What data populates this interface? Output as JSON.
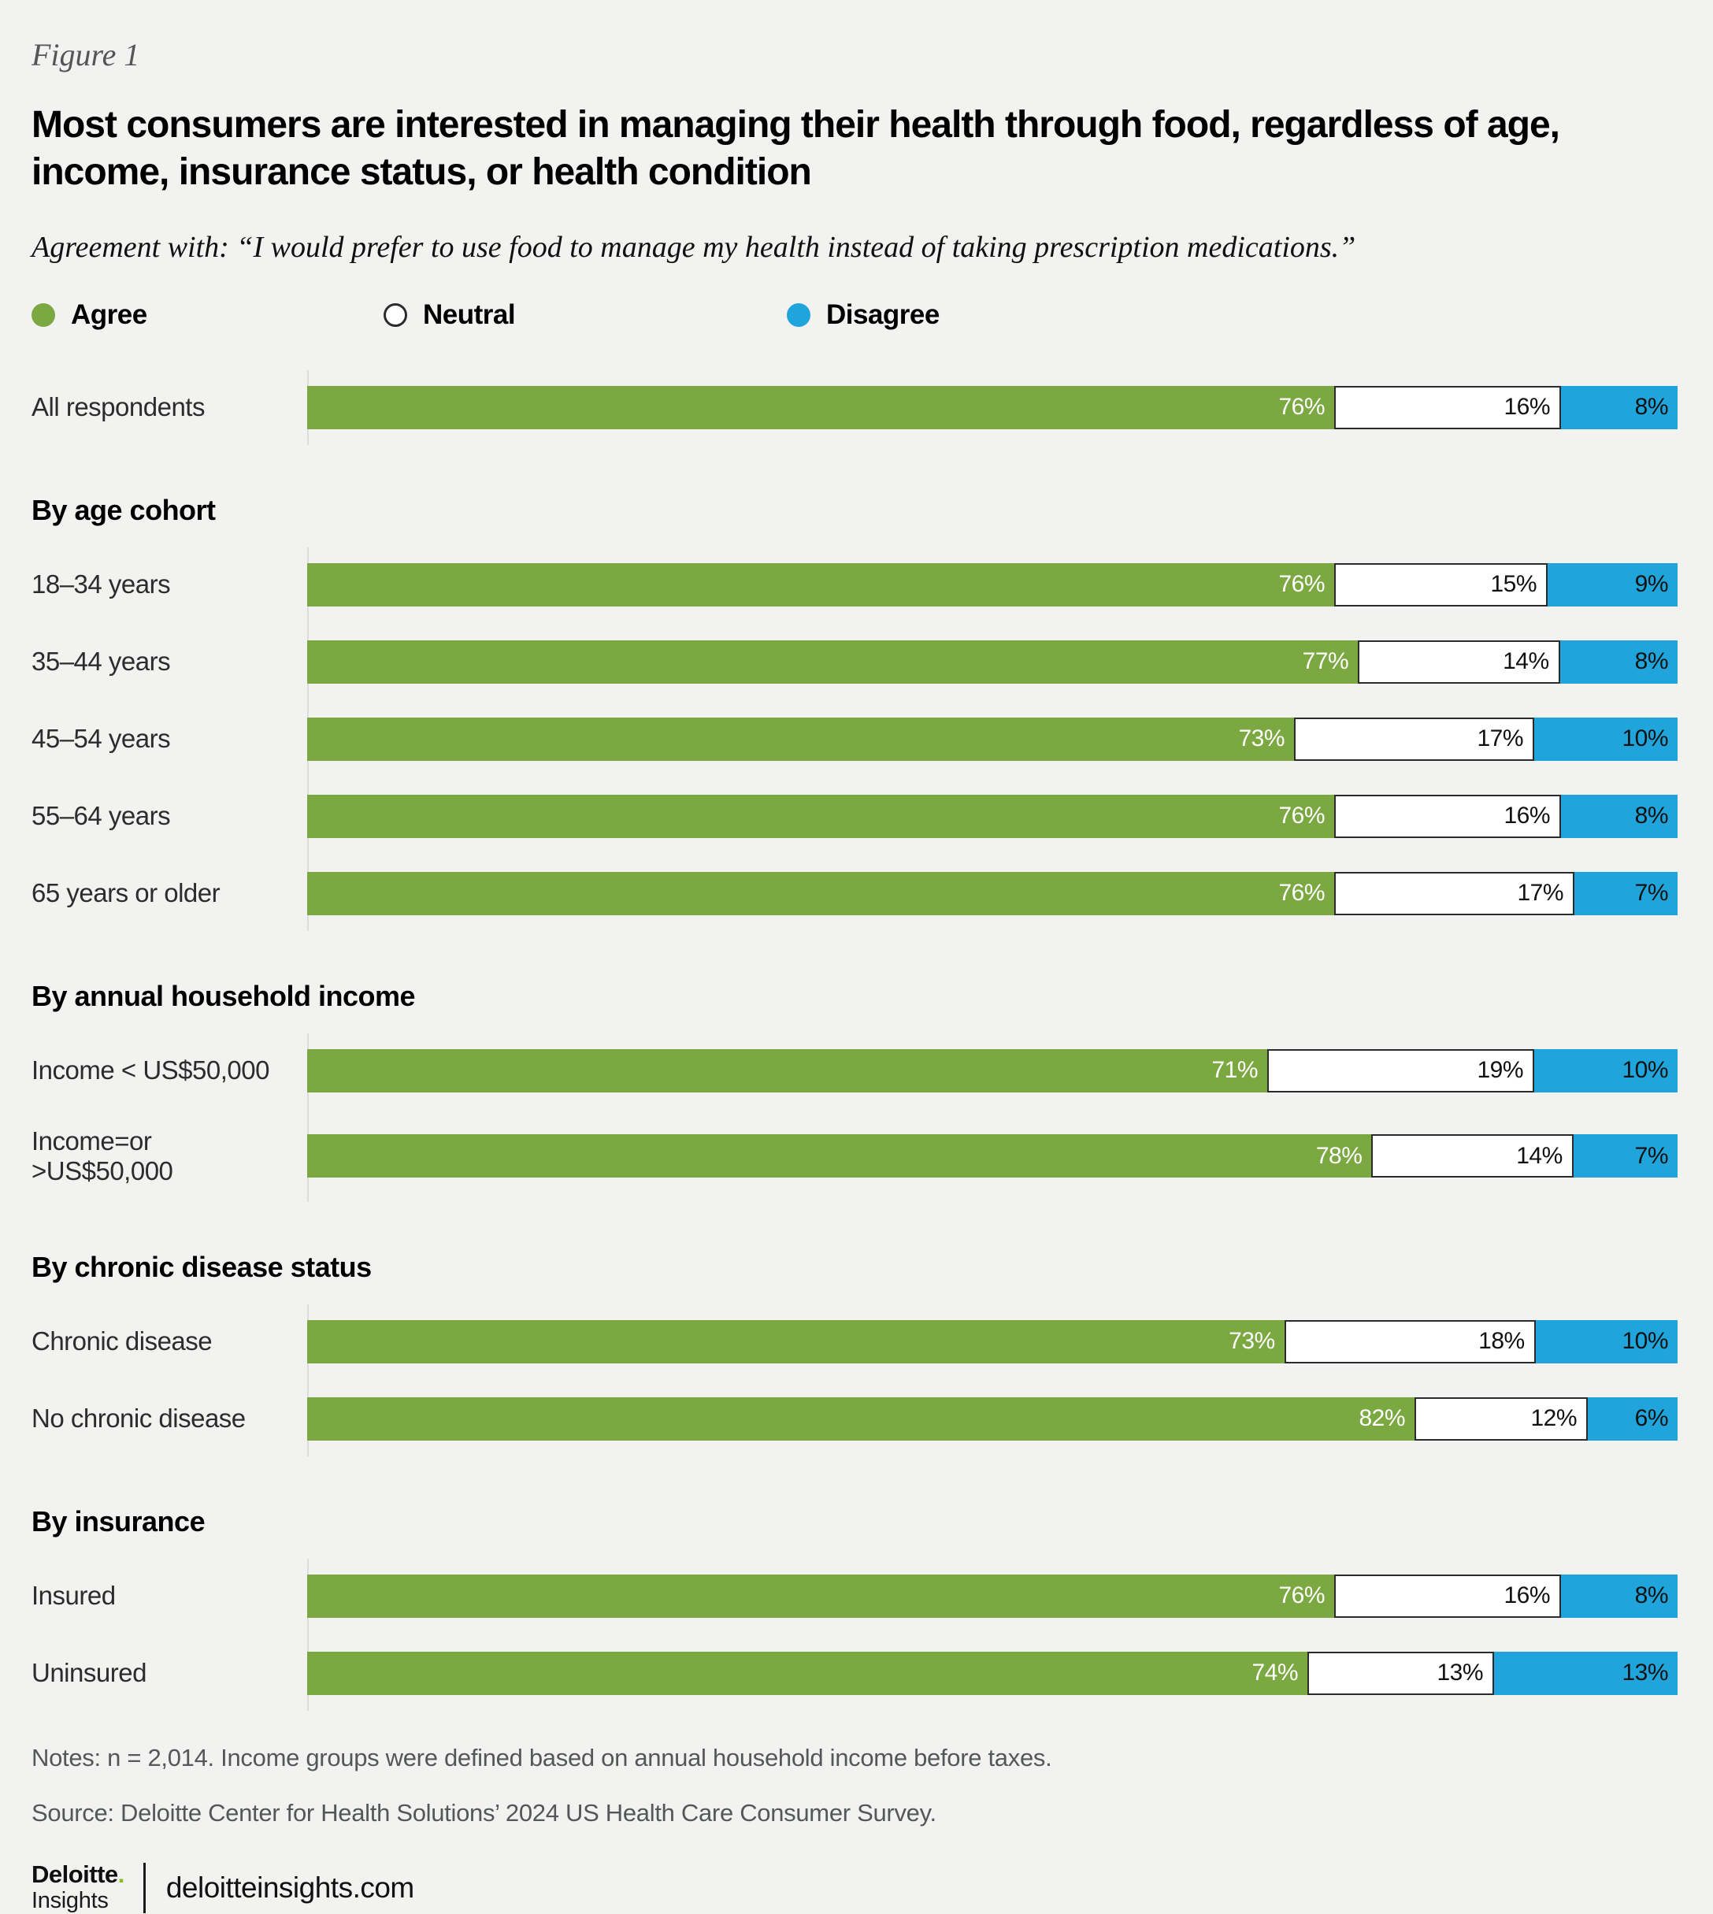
{
  "figure_label": "Figure 1",
  "title": "Most consumers are interested in managing their health through food, regardless of age, income, insurance status, or health condition",
  "subtitle": "Agreement with: “I would prefer to use food to manage my health instead of taking prescription medications.”",
  "chart_data": {
    "type": "bar",
    "variant": "stacked_horizontal",
    "xlim": [
      0,
      100
    ],
    "value_suffix": "%",
    "legend_position": "top",
    "series": [
      {
        "name": "Agree",
        "color": "#7ca842",
        "text_color": "#ffffff",
        "border": null
      },
      {
        "name": "Neutral",
        "color": "#ffffff",
        "text_color": "#111111",
        "border": "#2b2b2b"
      },
      {
        "name": "Disagree",
        "color": "#1fa5dc",
        "text_color": "#111111",
        "border": null
      }
    ],
    "groups": [
      {
        "header": "",
        "rows": [
          {
            "label": "All respondents",
            "values": [
              76,
              16,
              8
            ]
          }
        ]
      },
      {
        "header": "By age cohort",
        "rows": [
          {
            "label": "18–34 years",
            "values": [
              76,
              15,
              9
            ]
          },
          {
            "label": "35–44 years",
            "values": [
              77,
              14,
              8
            ]
          },
          {
            "label": "45–54 years",
            "values": [
              73,
              17,
              10
            ]
          },
          {
            "label": "55–64 years",
            "values": [
              76,
              16,
              8
            ]
          },
          {
            "label": "65 years or older",
            "values": [
              76,
              17,
              7
            ]
          }
        ]
      },
      {
        "header": "By annual household income",
        "rows": [
          {
            "label": "Income < US$50,000",
            "values": [
              71,
              19,
              10
            ]
          },
          {
            "label": "Income=or >US$50,000",
            "values": [
              78,
              14,
              7
            ]
          }
        ]
      },
      {
        "header": "By chronic disease status",
        "rows": [
          {
            "label": "Chronic disease",
            "values": [
              73,
              18,
              10
            ]
          },
          {
            "label": "No chronic disease",
            "values": [
              82,
              12,
              6
            ]
          }
        ]
      },
      {
        "header": "By insurance",
        "rows": [
          {
            "label": "Insured",
            "values": [
              76,
              16,
              8
            ]
          },
          {
            "label": "Uninsured",
            "values": [
              74,
              13,
              13
            ]
          }
        ]
      }
    ]
  },
  "notes": "Notes: n = 2,014. Income groups were defined based on annual household income before taxes.",
  "source": "Source: Deloitte Center for Health Solutions’ 2024 US Health Care Consumer Survey.",
  "footer": {
    "brand_primary": "Deloitte",
    "brand_dot": ".",
    "brand_secondary": "Insights",
    "site": "deloitteinsights.com",
    "brand_dot_color": "#86bc25"
  }
}
